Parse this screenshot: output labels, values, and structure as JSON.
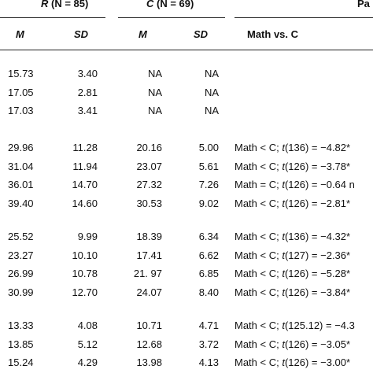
{
  "header": {
    "group_r": {
      "letter": "R",
      "n": "(N = 85)"
    },
    "group_c": {
      "letter": "C",
      "n": "(N = 69)"
    },
    "pa_cut": "Pa",
    "m": "M",
    "sd": "SD",
    "math_vs_c": "Math vs. C"
  },
  "sections": [
    {
      "rows": [
        {
          "r_m": "15.73",
          "r_sd": "3.40",
          "c_m": "NA",
          "c_sd": "NA",
          "cmp": ""
        },
        {
          "r_m": "17.05",
          "r_sd": "2.81",
          "c_m": "NA",
          "c_sd": "NA",
          "cmp": ""
        },
        {
          "r_m": "17.03",
          "r_sd": "3.41",
          "c_m": "NA",
          "c_sd": "NA",
          "cmp": ""
        }
      ]
    },
    {
      "rows": [
        {
          "r_m": "29.96",
          "r_sd": "11.28",
          "c_m": "20.16",
          "c_sd": "5.00",
          "cmp": "Math < C; t(136) = −4.82*"
        },
        {
          "r_m": "31.04",
          "r_sd": "11.94",
          "c_m": "23.07",
          "c_sd": "5.61",
          "cmp": "Math < C; t(126) = −3.78*"
        },
        {
          "r_m": "36.01",
          "r_sd": "14.70",
          "c_m": "27.32",
          "c_sd": "7.26",
          "cmp": "Math = C; t(126) = −0.64 n"
        },
        {
          "r_m": "39.40",
          "r_sd": "14.60",
          "c_m": "30.53",
          "c_sd": "9.02",
          "cmp": "Math < C; t(126) = −2.81*"
        }
      ]
    },
    {
      "rows": [
        {
          "r_m": "25.52",
          "r_sd": "9.99",
          "c_m": "18.39",
          "c_sd": "6.34",
          "cmp": "Math < C; t(136) = −4.32*"
        },
        {
          "r_m": "23.27",
          "r_sd": "10.10",
          "c_m": "17.41",
          "c_sd": "6.62",
          "cmp": "Math < C; t(127) = −2.36*"
        },
        {
          "r_m": "26.99",
          "r_sd": "10.78",
          "c_m": "21. 97",
          "c_sd": "6.85",
          "cmp": "Math < C; t(126) = −5.28*"
        },
        {
          "r_m": "30.99",
          "r_sd": "12.70",
          "c_m": "24.07",
          "c_sd": "8.40",
          "cmp": "Math < C; t(126) = −3.84*"
        }
      ]
    },
    {
      "rows": [
        {
          "r_m": "13.33",
          "r_sd": "4.08",
          "c_m": "10.71",
          "c_sd": "4.71",
          "cmp": "Math < C; t(125.12) = −4.3"
        },
        {
          "r_m": "13.85",
          "r_sd": "5.12",
          "c_m": "12.68",
          "c_sd": "3.72",
          "cmp": "Math < C; t(126) = −3.05*"
        },
        {
          "r_m": "15.24",
          "r_sd": "4.29",
          "c_m": "13.98",
          "c_sd": "4.13",
          "cmp": "Math < C; t(126) = −3.00*"
        }
      ]
    }
  ]
}
